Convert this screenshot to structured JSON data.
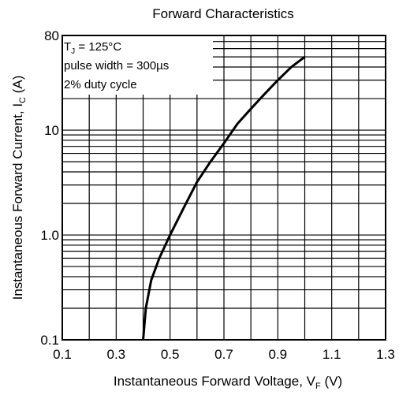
{
  "chart_data": {
    "type": "line",
    "title": "Forward Characteristics",
    "xlabel": "Instantaneous Forward Voltage, V",
    "xlabel_sub": "F",
    "xlabel_unit": " (V)",
    "ylabel": "Instantaneous Forward Current, I",
    "ylabel_sub": "C",
    "ylabel_unit": " (A)",
    "xlim": [
      0.1,
      1.3
    ],
    "ylim": [
      0.1,
      80
    ],
    "yscale": "log",
    "grid": true,
    "x_ticks": [
      {
        "v": 0.1,
        "label": "0.1"
      },
      {
        "v": 0.3,
        "label": "0.3"
      },
      {
        "v": 0.5,
        "label": "0.5"
      },
      {
        "v": 0.7,
        "label": "0.7"
      },
      {
        "v": 0.9,
        "label": "0.9"
      },
      {
        "v": 1.1,
        "label": "1.1"
      },
      {
        "v": 1.3,
        "label": "1.3"
      }
    ],
    "y_ticks": [
      {
        "v": 0.1,
        "label": "0.1"
      },
      {
        "v": 1.0,
        "label": "1.0"
      },
      {
        "v": 10,
        "label": "10"
      },
      {
        "v": 80,
        "label": "80"
      }
    ],
    "annotation": {
      "line1_prefix": "T",
      "line1_sub": "J",
      "line1_suffix": " = 125°C",
      "line2": "pulse width = 300µs",
      "line3": "2% duty cycle"
    },
    "series": [
      {
        "x": [
          0.4,
          0.41,
          0.43,
          0.46,
          0.5,
          0.55,
          0.6,
          0.65,
          0.7,
          0.75,
          0.8,
          0.85,
          0.9,
          0.95,
          1.0
        ],
        "y": [
          0.1,
          0.2,
          0.37,
          0.6,
          1.0,
          1.8,
          3.2,
          5.0,
          7.5,
          11.5,
          16.0,
          22.0,
          30.0,
          40.0,
          50.0
        ]
      }
    ]
  }
}
